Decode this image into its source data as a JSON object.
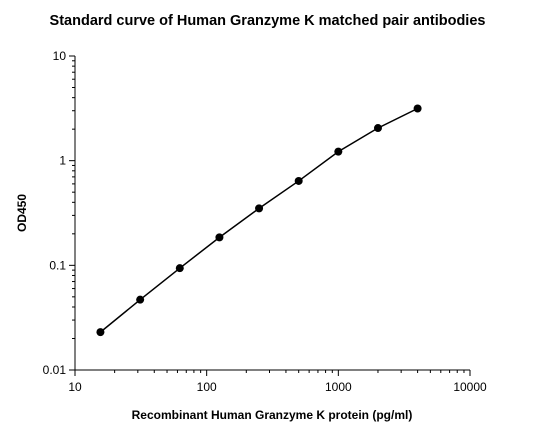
{
  "chart_data": {
    "type": "line",
    "title": "Standard curve of Human Granzyme K matched pair antibodies",
    "xlabel": "Recombinant Human Granzyme K protein (pg/ml)",
    "ylabel": "OD450",
    "x_scale": "log",
    "y_scale": "log",
    "xlim": [
      10,
      10000
    ],
    "ylim": [
      0.01,
      10
    ],
    "x_ticks": [
      "10",
      "100",
      "1000",
      "10000"
    ],
    "y_ticks": [
      "0.01",
      "0.1",
      "1",
      "10"
    ],
    "grid": false,
    "series": [
      {
        "x": [
          15.6,
          31.25,
          62.5,
          125,
          250,
          500,
          1000,
          2000,
          4000
        ],
        "y": [
          0.023,
          0.047,
          0.094,
          0.185,
          0.35,
          0.64,
          1.22,
          2.05,
          3.15
        ]
      }
    ],
    "colors": {
      "line": "#000000",
      "marker": "#000000"
    }
  }
}
